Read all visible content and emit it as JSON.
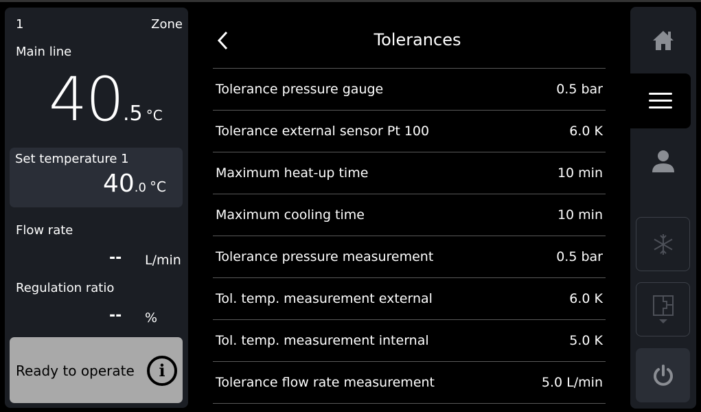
{
  "zone": {
    "number": "1",
    "label": "Zone"
  },
  "main_line": {
    "label": "Main line",
    "value_int": "40",
    "value_dec": ".5",
    "unit": "°C"
  },
  "set_temperature": {
    "label": "Set temperature 1",
    "value_int": "40",
    "value_dec": ".0",
    "unit": "°C"
  },
  "flow_rate": {
    "label": "Flow rate",
    "value": "--",
    "unit": "L/min"
  },
  "regulation_ratio": {
    "label": "Regulation ratio",
    "value": "--",
    "unit": "%"
  },
  "status": {
    "text": "Ready to operate",
    "icon": "info-icon",
    "color": "#a9a9a9"
  },
  "page": {
    "title": "Tolerances"
  },
  "rows": [
    {
      "label": "Tolerance pressure gauge",
      "value": "0.5 bar"
    },
    {
      "label": "Tolerance external sensor Pt 100",
      "value": "6.0 K"
    },
    {
      "label": "Maximum heat-up time",
      "value": "10 min"
    },
    {
      "label": "Maximum cooling time",
      "value": "10 min"
    },
    {
      "label": "Tolerance pressure measurement",
      "value": "0.5 bar"
    },
    {
      "label": "Tol. temp. measurement external",
      "value": "6.0 K"
    },
    {
      "label": "Tol. temp. measurement internal",
      "value": "5.0 K"
    },
    {
      "label": "Tolerance flow rate measurement",
      "value": "5.0 L/min"
    }
  ],
  "nav": {
    "items": [
      "home-icon",
      "menu-icon",
      "user-icon",
      "snowflake-icon",
      "layout-icon",
      "power-icon"
    ],
    "active": "menu-icon"
  }
}
